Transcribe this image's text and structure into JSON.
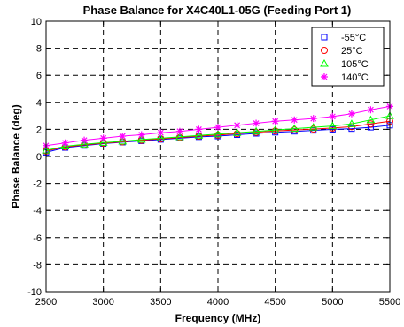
{
  "chart_data": {
    "type": "line",
    "title": "Phase Balance for X4C40L1-05G (Feeding Port 1)",
    "xlabel": "Frequency (MHz)",
    "ylabel": "Phase Balance (deg)",
    "xlim": [
      2500,
      5500
    ],
    "ylim": [
      -10,
      10
    ],
    "xticks": [
      2500,
      3000,
      3500,
      4000,
      4500,
      5000,
      5500
    ],
    "yticks": [
      -10,
      -8,
      -6,
      -4,
      -2,
      0,
      2,
      4,
      6,
      8,
      10
    ],
    "grid": true,
    "legend_position": "top-right",
    "x": [
      2500,
      2667,
      2833,
      3000,
      3167,
      3333,
      3500,
      3667,
      3833,
      4000,
      4167,
      4333,
      4500,
      4667,
      4833,
      5000,
      5167,
      5333,
      5500
    ],
    "series": [
      {
        "name": "-55°C",
        "color": "#0000ff",
        "marker": "square",
        "values": [
          0.3,
          0.65,
          0.8,
          0.95,
          1.05,
          1.15,
          1.25,
          1.35,
          1.45,
          1.5,
          1.6,
          1.7,
          1.78,
          1.85,
          1.92,
          2.0,
          2.05,
          2.15,
          2.3
        ]
      },
      {
        "name": "25°C",
        "color": "#ff0000",
        "marker": "circle",
        "values": [
          0.4,
          0.7,
          0.85,
          0.98,
          1.08,
          1.2,
          1.3,
          1.4,
          1.5,
          1.58,
          1.68,
          1.78,
          1.88,
          1.95,
          2.02,
          2.1,
          2.2,
          2.4,
          2.6
        ]
      },
      {
        "name": "105°C",
        "color": "#00ff00",
        "marker": "triangle",
        "values": [
          0.45,
          0.75,
          0.9,
          1.02,
          1.12,
          1.25,
          1.35,
          1.45,
          1.55,
          1.65,
          1.75,
          1.85,
          1.95,
          2.05,
          2.15,
          2.25,
          2.4,
          2.7,
          3.0
        ]
      },
      {
        "name": "140°C",
        "color": "#ff00ff",
        "marker": "star",
        "values": [
          0.8,
          1.0,
          1.2,
          1.35,
          1.5,
          1.6,
          1.75,
          1.85,
          2.0,
          2.15,
          2.3,
          2.45,
          2.6,
          2.7,
          2.8,
          2.95,
          3.15,
          3.45,
          3.7
        ]
      }
    ]
  }
}
